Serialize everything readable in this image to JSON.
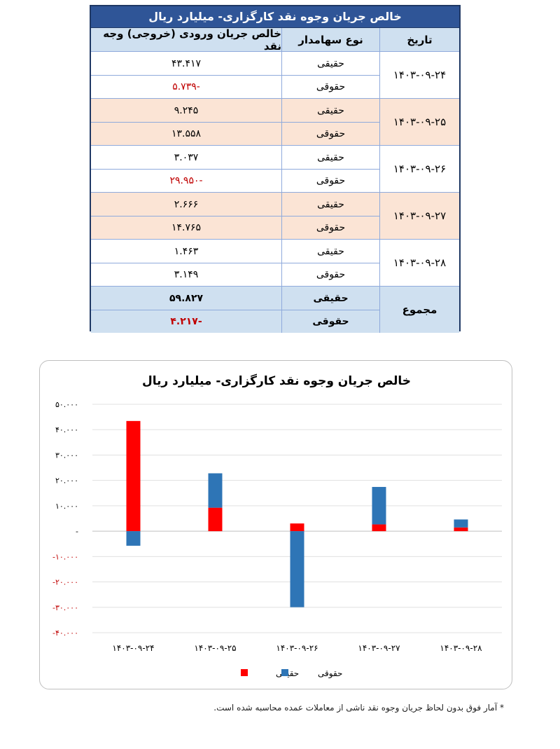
{
  "table": {
    "title": "خالص جریان وجوه نقد کارگزاری- میلیارد ریال",
    "headers": {
      "date": "تاریخ",
      "type": "نوع سهامدار",
      "flow": "خالص جریان ورودی (خروجی) وجه نقد"
    },
    "groups": [
      {
        "date": "۱۴۰۳-۰۹-۲۴",
        "rows": [
          {
            "type": "حقیقی",
            "value": "۴۳.۴۱۷"
          },
          {
            "type": "حقوقی",
            "value": "-۵.۷۳۹"
          }
        ]
      },
      {
        "date": "۱۴۰۳-۰۹-۲۵",
        "rows": [
          {
            "type": "حقیقی",
            "value": "۹.۲۴۵"
          },
          {
            "type": "حقوقی",
            "value": "۱۳.۵۵۸"
          }
        ]
      },
      {
        "date": "۱۴۰۳-۰۹-۲۶",
        "rows": [
          {
            "type": "حقیقی",
            "value": "۳.۰۳۷"
          },
          {
            "type": "حقوقی",
            "value": "-۲۹.۹۵۰"
          }
        ]
      },
      {
        "date": "۱۴۰۳-۰۹-۲۷",
        "rows": [
          {
            "type": "حقیقی",
            "value": "۲.۶۶۶"
          },
          {
            "type": "حقوقی",
            "value": "۱۴.۷۶۵"
          }
        ]
      },
      {
        "date": "۱۴۰۳-۰۹-۲۸",
        "rows": [
          {
            "type": "حقیقی",
            "value": "۱.۴۶۳"
          },
          {
            "type": "حقوقی",
            "value": "۳.۱۴۹"
          }
        ]
      }
    ],
    "total": {
      "label": "مجموع",
      "rows": [
        {
          "type": "حقیقی",
          "value": "۵۹.۸۲۷"
        },
        {
          "type": "حقوقی",
          "value": "-۴.۲۱۷"
        }
      ]
    }
  },
  "chart_data": {
    "type": "bar",
    "stacked": true,
    "title": "خالص جریان وجوه نقد کارگزاری- میلیارد ریال",
    "categories": [
      "۱۴۰۳-۰۹-۲۴",
      "۱۴۰۳-۰۹-۲۵",
      "۱۴۰۳-۰۹-۲۶",
      "۱۴۰۳-۰۹-۲۷",
      "۱۴۰۳-۰۹-۲۸"
    ],
    "series": [
      {
        "name": "حقیقی",
        "color": "#ff0000",
        "values": [
          43.417,
          9.245,
          3.037,
          2.666,
          1.463
        ]
      },
      {
        "name": "حقوقی",
        "color": "#2e75b6",
        "values": [
          -5.739,
          13.558,
          -29.95,
          14.765,
          3.149
        ]
      }
    ],
    "ylim": [
      -40,
      50
    ],
    "yticks": [
      {
        "v": 50,
        "label": "۵۰.۰۰۰"
      },
      {
        "v": 40,
        "label": "۴۰.۰۰۰"
      },
      {
        "v": 30,
        "label": "۳۰.۰۰۰"
      },
      {
        "v": 20,
        "label": "۲۰.۰۰۰"
      },
      {
        "v": 10,
        "label": "۱۰.۰۰۰"
      },
      {
        "v": 0,
        "label": "-"
      },
      {
        "v": -10,
        "label": "-۱۰.۰۰۰"
      },
      {
        "v": -20,
        "label": "-۲۰.۰۰۰"
      },
      {
        "v": -30,
        "label": "-۳۰.۰۰۰"
      },
      {
        "v": -40,
        "label": "-۴۰.۰۰۰"
      }
    ],
    "negative_tick_color": "#c00000",
    "grid": true,
    "legend": "bottom"
  },
  "footnote": "* آمار فوق بدون لحاظ جریان وجوه نقد ناشی از معاملات عمده محاسبه شده است."
}
